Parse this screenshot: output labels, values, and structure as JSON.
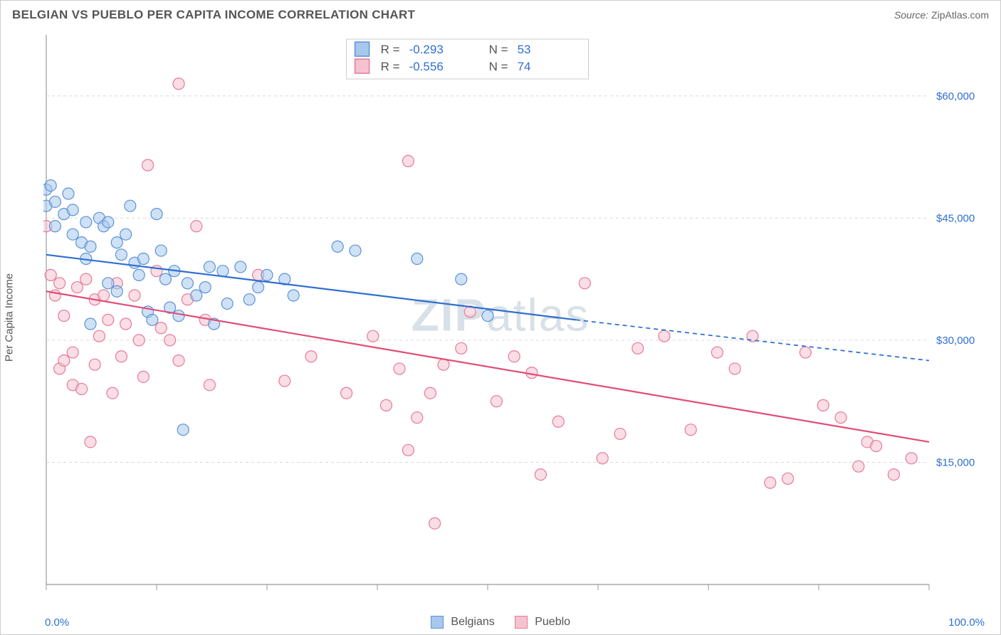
{
  "title": "BELGIAN VS PUEBLO PER CAPITA INCOME CORRELATION CHART",
  "source_label": "Source:",
  "source_value": "ZipAtlas.com",
  "ylabel": "Per Capita Income",
  "watermark": "ZIPatlas",
  "chart": {
    "type": "scatter-with-regression",
    "background_color": "#ffffff",
    "grid_color": "#d9d9d9",
    "axis_color": "#999999",
    "text_color": "#555555",
    "value_color": "#2f6fd0",
    "xlim": [
      0,
      100
    ],
    "ylim": [
      0,
      67500
    ],
    "x_end_labels": [
      "0.0%",
      "100.0%"
    ],
    "x_ticks": [
      0,
      12.5,
      25,
      37.5,
      50,
      62.5,
      75,
      87.5,
      100
    ],
    "y_ticks": [
      15000,
      30000,
      45000,
      60000
    ],
    "y_tick_labels": [
      "$15,000",
      "$30,000",
      "$45,000",
      "$60,000"
    ],
    "marker_radius": 8,
    "marker_opacity": 0.55,
    "line_width": 2.2,
    "series": [
      {
        "name": "Belgians",
        "color_fill": "#a7c8ec",
        "color_stroke": "#5b93d6",
        "line_color": "#2f6fd0",
        "R": "-0.293",
        "N": "53",
        "regression": {
          "x1": 0,
          "y1": 40500,
          "x2": 60,
          "y2": 32500,
          "x2_dash": 100,
          "y2_dash": 27500
        },
        "points": [
          [
            0,
            48500
          ],
          [
            0,
            46500
          ],
          [
            0.5,
            49000
          ],
          [
            1,
            47000
          ],
          [
            1,
            44000
          ],
          [
            2,
            45500
          ],
          [
            2.5,
            48000
          ],
          [
            3,
            43000
          ],
          [
            3,
            46000
          ],
          [
            4,
            42000
          ],
          [
            4.5,
            40000
          ],
          [
            4.5,
            44500
          ],
          [
            5,
            41500
          ],
          [
            5,
            32000
          ],
          [
            6,
            45000
          ],
          [
            6.5,
            44000
          ],
          [
            7,
            44500
          ],
          [
            7,
            37000
          ],
          [
            8,
            36000
          ],
          [
            8,
            42000
          ],
          [
            8.5,
            40500
          ],
          [
            9,
            43000
          ],
          [
            9.5,
            46500
          ],
          [
            10,
            39500
          ],
          [
            10.5,
            38000
          ],
          [
            11,
            40000
          ],
          [
            11.5,
            33500
          ],
          [
            12,
            32500
          ],
          [
            12.5,
            45500
          ],
          [
            13,
            41000
          ],
          [
            13.5,
            37500
          ],
          [
            14,
            34000
          ],
          [
            14.5,
            38500
          ],
          [
            15,
            33000
          ],
          [
            15.5,
            19000
          ],
          [
            16,
            37000
          ],
          [
            17,
            35500
          ],
          [
            18,
            36500
          ],
          [
            18.5,
            39000
          ],
          [
            19,
            32000
          ],
          [
            20,
            38500
          ],
          [
            20.5,
            34500
          ],
          [
            22,
            39000
          ],
          [
            23,
            35000
          ],
          [
            24,
            36500
          ],
          [
            25,
            38000
          ],
          [
            27,
            37500
          ],
          [
            28,
            35500
          ],
          [
            33,
            41500
          ],
          [
            35,
            41000
          ],
          [
            42,
            40000
          ],
          [
            47,
            37500
          ],
          [
            50,
            33000
          ]
        ]
      },
      {
        "name": "Pueblo",
        "color_fill": "#f5c3cf",
        "color_stroke": "#e67a9a",
        "line_color": "#e14d77",
        "R": "-0.556",
        "N": "74",
        "regression": {
          "x1": 0,
          "y1": 36000,
          "x2": 100,
          "y2": 17500,
          "x2_dash": 100,
          "y2_dash": 17500
        },
        "points": [
          [
            0,
            44000
          ],
          [
            0.5,
            38000
          ],
          [
            1,
            35500
          ],
          [
            1.5,
            37000
          ],
          [
            1.5,
            26500
          ],
          [
            2,
            27500
          ],
          [
            2,
            33000
          ],
          [
            3,
            24500
          ],
          [
            3,
            28500
          ],
          [
            3.5,
            36500
          ],
          [
            4,
            24000
          ],
          [
            4.5,
            37500
          ],
          [
            5,
            17500
          ],
          [
            5.5,
            35000
          ],
          [
            5.5,
            27000
          ],
          [
            6,
            30500
          ],
          [
            6.5,
            35500
          ],
          [
            7,
            32500
          ],
          [
            7.5,
            23500
          ],
          [
            8,
            37000
          ],
          [
            8.5,
            28000
          ],
          [
            9,
            32000
          ],
          [
            10,
            35500
          ],
          [
            10.5,
            30000
          ],
          [
            11,
            25500
          ],
          [
            11.5,
            51500
          ],
          [
            12.5,
            38500
          ],
          [
            13,
            31500
          ],
          [
            14,
            30000
          ],
          [
            15,
            27500
          ],
          [
            15,
            61500
          ],
          [
            16,
            35000
          ],
          [
            17,
            44000
          ],
          [
            18,
            32500
          ],
          [
            18.5,
            24500
          ],
          [
            24,
            38000
          ],
          [
            27,
            25000
          ],
          [
            30,
            28000
          ],
          [
            34,
            23500
          ],
          [
            37,
            30500
          ],
          [
            38.5,
            22000
          ],
          [
            40,
            26500
          ],
          [
            41,
            16500
          ],
          [
            41,
            52000
          ],
          [
            42,
            20500
          ],
          [
            43.5,
            23500
          ],
          [
            44,
            7500
          ],
          [
            45,
            27000
          ],
          [
            47,
            29000
          ],
          [
            48,
            33500
          ],
          [
            51,
            22500
          ],
          [
            53,
            28000
          ],
          [
            55,
            26000
          ],
          [
            56,
            13500
          ],
          [
            58,
            20000
          ],
          [
            61,
            37000
          ],
          [
            63,
            15500
          ],
          [
            65,
            18500
          ],
          [
            67,
            29000
          ],
          [
            70,
            30500
          ],
          [
            73,
            19000
          ],
          [
            76,
            28500
          ],
          [
            78,
            26500
          ],
          [
            80,
            30500
          ],
          [
            82,
            12500
          ],
          [
            84,
            13000
          ],
          [
            86,
            28500
          ],
          [
            88,
            22000
          ],
          [
            90,
            20500
          ],
          [
            92,
            14500
          ],
          [
            93,
            17500
          ],
          [
            94,
            17000
          ],
          [
            96,
            13500
          ],
          [
            98,
            15500
          ]
        ]
      }
    ],
    "legend_top": {
      "border_color": "#cccccc",
      "bg": "#ffffff",
      "rows": [
        {
          "swatch": 0,
          "r_label": "R =",
          "r_val": "-0.293",
          "n_label": "N =",
          "n_val": "53"
        },
        {
          "swatch": 1,
          "r_label": "R =",
          "r_val": "-0.556",
          "n_label": "N =",
          "n_val": "74"
        }
      ]
    },
    "footer_legend": [
      {
        "swatch": 0,
        "label": "Belgians"
      },
      {
        "swatch": 1,
        "label": "Pueblo"
      }
    ]
  }
}
